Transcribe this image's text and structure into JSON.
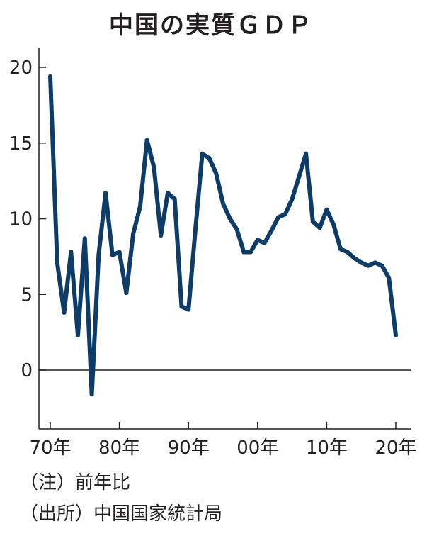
{
  "chart_data": {
    "type": "line",
    "title": "中国の実質ＧＤＰ",
    "xlabel": "",
    "ylabel": "",
    "x": [
      1970,
      1971,
      1972,
      1973,
      1974,
      1975,
      1976,
      1977,
      1978,
      1979,
      1980,
      1981,
      1982,
      1983,
      1984,
      1985,
      1986,
      1987,
      1988,
      1989,
      1990,
      1991,
      1992,
      1993,
      1994,
      1995,
      1996,
      1997,
      1998,
      1999,
      2000,
      2001,
      2002,
      2003,
      2004,
      2005,
      2006,
      2007,
      2008,
      2009,
      2010,
      2011,
      2012,
      2013,
      2014,
      2015,
      2016,
      2017,
      2018,
      2019,
      2020
    ],
    "series": [
      {
        "values": [
          19.4,
          7.1,
          3.8,
          7.8,
          2.3,
          8.7,
          -1.6,
          7.6,
          11.7,
          7.6,
          7.8,
          5.1,
          9.0,
          10.8,
          15.2,
          13.4,
          8.9,
          11.7,
          11.3,
          4.2,
          4.0,
          9.3,
          14.3,
          14.0,
          13.0,
          11.0,
          10.0,
          9.3,
          7.8,
          7.8,
          8.6,
          8.4,
          9.2,
          10.1,
          10.3,
          11.3,
          12.8,
          14.3,
          9.8,
          9.4,
          10.6,
          9.6,
          8.0,
          7.8,
          7.4,
          7.1,
          6.9,
          7.1,
          6.9,
          6.1,
          2.3
        ]
      }
    ],
    "ylim": [
      -3.8,
      21.3
    ],
    "xlim": [
      1968,
      2022
    ],
    "yticks": [
      0,
      5,
      10,
      15,
      20
    ],
    "ytick_labels": [
      "0",
      "5",
      "10",
      "15",
      "20"
    ],
    "xticks": [
      1970,
      1980,
      1990,
      2000,
      2010,
      2020
    ],
    "xtick_labels": [
      "70年",
      "80年",
      "90年",
      "00年",
      "10年",
      "20年"
    ],
    "line_color": "#0d3c68",
    "grid": false,
    "zero_line": true
  },
  "notes": {
    "note": "（注）前年比",
    "source": "（出所）中国国家統計局"
  }
}
